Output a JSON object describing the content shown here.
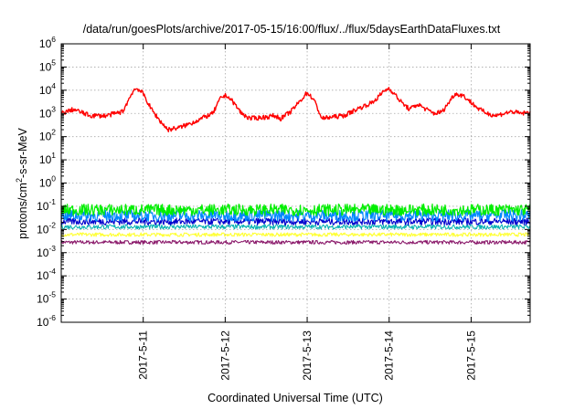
{
  "chart_data": {
    "type": "line",
    "title": "/data/run/goesPlots/archive/2017-05-15/16:00/flux/../flux/5daysEarthDataFluxes.txt",
    "xlabel": "Coordinated Universal Time (UTC)",
    "ylabel_main": "protons/cm",
    "ylabel_sup": "2",
    "ylabel_rest": "-s-sr-MeV",
    "yscale": "log",
    "ylim_exp": [
      -6,
      6
    ],
    "xlim_days": [
      10.0,
      15.72
    ],
    "grid": true,
    "legend": "none",
    "y_tick_exponents": [
      -6,
      -5,
      -4,
      -3,
      -2,
      -1,
      0,
      1,
      2,
      3,
      4,
      5,
      6
    ],
    "y_tick_base": "10",
    "x_ticks": [
      {
        "label": "2017-5-11",
        "day": 11
      },
      {
        "label": "2017-5-12",
        "day": 12
      },
      {
        "label": "2017-5-13",
        "day": 13
      },
      {
        "label": "2017-5-14",
        "day": 14
      },
      {
        "label": "2017-5-15",
        "day": 15
      }
    ],
    "series": [
      {
        "color": "#ff0000",
        "width": 1.4,
        "noise": 0.1,
        "points": [
          [
            10.0,
            1000
          ],
          [
            10.15,
            1500
          ],
          [
            10.35,
            800
          ],
          [
            10.55,
            800
          ],
          [
            10.75,
            1200
          ],
          [
            10.88,
            10000
          ],
          [
            10.93,
            12000
          ],
          [
            11.0,
            7000
          ],
          [
            11.1,
            1500
          ],
          [
            11.2,
            500
          ],
          [
            11.3,
            200
          ],
          [
            11.45,
            250
          ],
          [
            11.6,
            400
          ],
          [
            11.75,
            700
          ],
          [
            11.85,
            1000
          ],
          [
            11.95,
            5000
          ],
          [
            12.02,
            6000
          ],
          [
            12.1,
            3000
          ],
          [
            12.2,
            1000
          ],
          [
            12.3,
            600
          ],
          [
            12.5,
            700
          ],
          [
            12.6,
            800
          ],
          [
            12.68,
            600
          ],
          [
            12.8,
            1200
          ],
          [
            12.9,
            3000
          ],
          [
            13.0,
            8000
          ],
          [
            13.08,
            4000
          ],
          [
            13.18,
            600
          ],
          [
            13.3,
            700
          ],
          [
            13.45,
            800
          ],
          [
            13.6,
            1500
          ],
          [
            13.8,
            3000
          ],
          [
            13.95,
            10000
          ],
          [
            14.0,
            12000
          ],
          [
            14.05,
            8000
          ],
          [
            14.15,
            3000
          ],
          [
            14.25,
            1500
          ],
          [
            14.35,
            2500
          ],
          [
            14.45,
            1500
          ],
          [
            14.55,
            1000
          ],
          [
            14.65,
            1200
          ],
          [
            14.8,
            7000
          ],
          [
            14.9,
            6000
          ],
          [
            15.0,
            3000
          ],
          [
            15.1,
            1500
          ],
          [
            15.2,
            1000
          ],
          [
            15.3,
            800
          ],
          [
            15.4,
            1000
          ],
          [
            15.5,
            1200
          ],
          [
            15.6,
            1000
          ],
          [
            15.72,
            1100
          ]
        ]
      },
      {
        "color": "#00ee00",
        "width": 1.2,
        "noise": 0.25,
        "points": [
          [
            10.0,
            0.07
          ],
          [
            15.72,
            0.07
          ]
        ]
      },
      {
        "color": "#0088ff",
        "width": 1.2,
        "noise": 0.25,
        "points": [
          [
            10.0,
            0.04
          ],
          [
            15.72,
            0.04
          ]
        ]
      },
      {
        "color": "#0000cc",
        "width": 1.1,
        "noise": 0.15,
        "points": [
          [
            10.0,
            0.022
          ],
          [
            15.72,
            0.022
          ]
        ]
      },
      {
        "color": "#00b0b0",
        "width": 1.0,
        "noise": 0.1,
        "points": [
          [
            10.0,
            0.013
          ],
          [
            15.72,
            0.013
          ]
        ]
      },
      {
        "color": "#ffff33",
        "width": 1.1,
        "noise": 0.08,
        "points": [
          [
            10.0,
            0.006
          ],
          [
            15.72,
            0.006
          ]
        ]
      },
      {
        "color": "#8b1a6b",
        "width": 1.1,
        "noise": 0.08,
        "points": [
          [
            10.0,
            0.0028
          ],
          [
            15.72,
            0.0028
          ]
        ]
      }
    ]
  }
}
